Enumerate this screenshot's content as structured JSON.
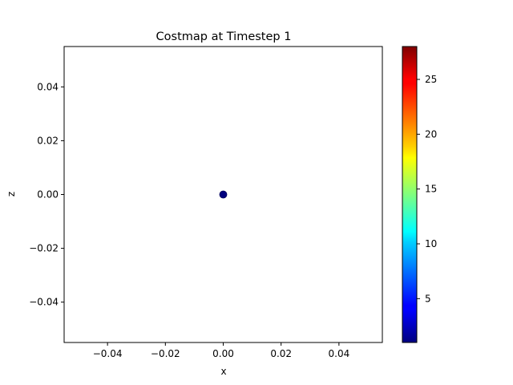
{
  "chart_data": {
    "type": "scatter",
    "title": "Costmap at Timestep 1",
    "xlabel": "x",
    "ylabel": "z",
    "xlim": [
      -0.055,
      0.055
    ],
    "ylim": [
      -0.055,
      0.055
    ],
    "x_ticks": [
      -0.04,
      -0.02,
      0.0,
      0.02,
      0.04
    ],
    "x_tick_labels": [
      "−0.04",
      "−0.02",
      "0.00",
      "0.02",
      "0.04"
    ],
    "y_ticks": [
      -0.04,
      -0.02,
      0.0,
      0.02,
      0.04
    ],
    "y_tick_labels": [
      "−0.04",
      "−0.02",
      "0.00",
      "0.02",
      "0.04"
    ],
    "points": [
      {
        "x": 0.0,
        "y": 0.0,
        "cost": 1.0
      }
    ],
    "colorbar": {
      "colormap": "jet",
      "range": [
        1.0,
        28.0
      ],
      "ticks": [
        5,
        10,
        15,
        20,
        25
      ],
      "tick_labels": [
        "5",
        "10",
        "15",
        "20",
        "25"
      ]
    },
    "grid": false,
    "legend": "none",
    "marker_color": "#00007f"
  }
}
